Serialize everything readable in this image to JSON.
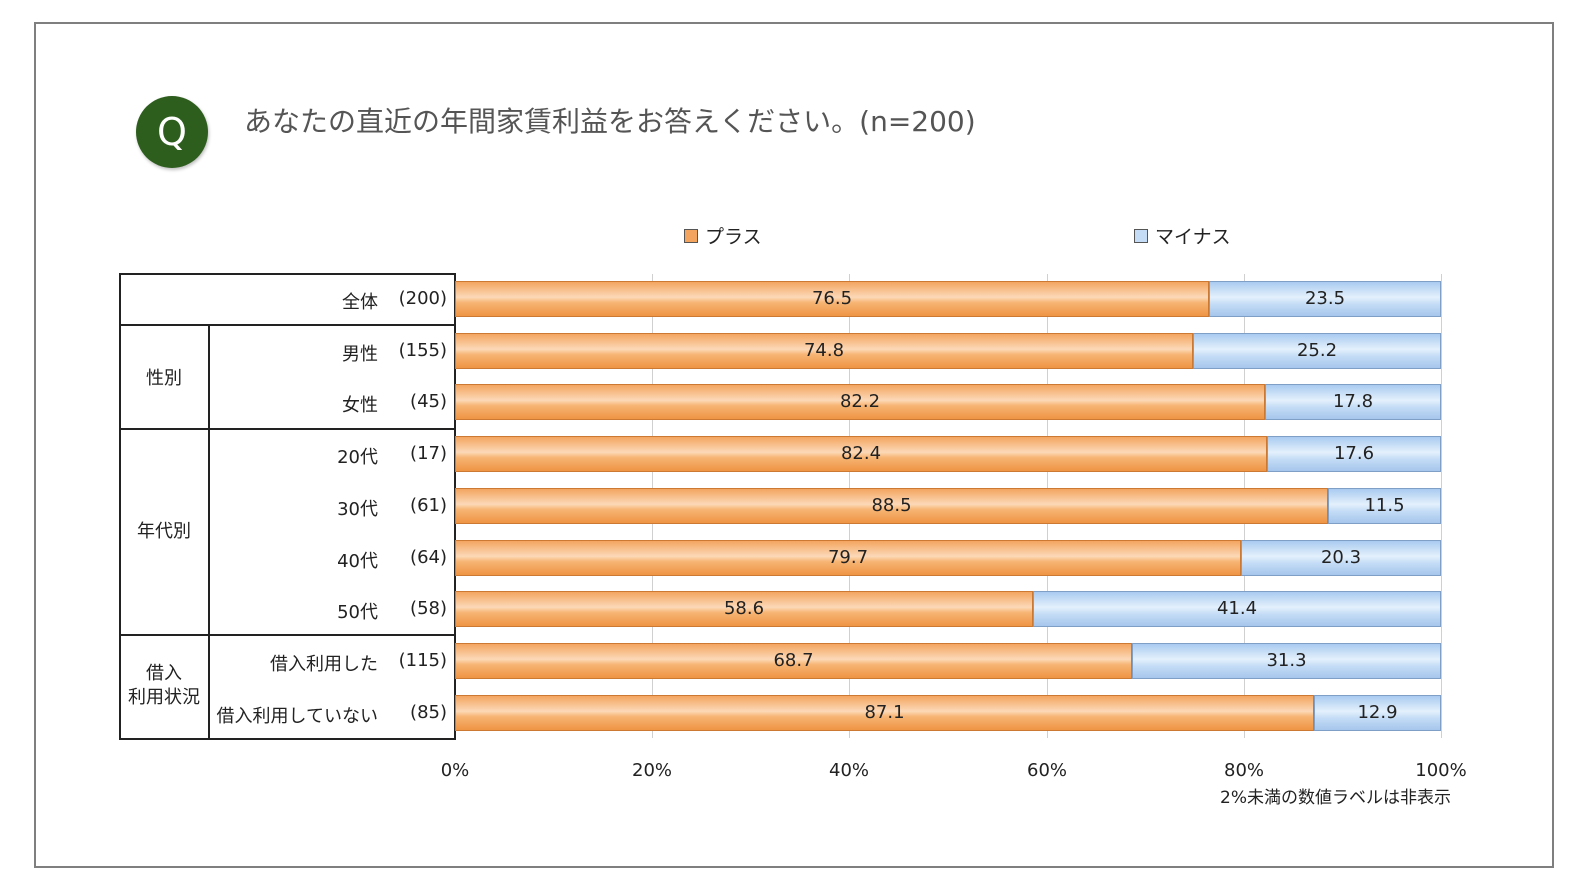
{
  "question": {
    "badge": "Q",
    "text": "あなたの直近の年間家賃利益をお答えください。(n=200)"
  },
  "legend": {
    "plus": "プラス",
    "minus": "マイナス"
  },
  "colors": {
    "plus": "#f3a55f",
    "minus": "#c4dcf6",
    "badge": "#2e5e1e"
  },
  "groups": {
    "gender": "性別",
    "age": "年代別",
    "loan_line1": "借入",
    "loan_line2": "利用状況"
  },
  "note": "2%未満の数値ラベルは非表示",
  "chart_data": {
    "type": "bar",
    "orientation": "horizontal-stacked-100",
    "categories": [
      "全体",
      "男性",
      "女性",
      "20代",
      "30代",
      "40代",
      "50代",
      "借入利用した",
      "借入利用していない"
    ],
    "n": [
      "(200)",
      "(155)",
      "(45)",
      "(17)",
      "(61)",
      "(64)",
      "(58)",
      "(115)",
      "(85)"
    ],
    "series": [
      {
        "name": "プラス",
        "values": [
          76.5,
          74.8,
          82.2,
          82.4,
          88.5,
          79.7,
          58.6,
          68.7,
          87.1
        ]
      },
      {
        "name": "マイナス",
        "values": [
          23.5,
          25.2,
          17.8,
          17.6,
          11.5,
          20.3,
          41.4,
          31.3,
          12.9
        ]
      }
    ],
    "xticks": [
      "0%",
      "20%",
      "40%",
      "60%",
      "80%",
      "100%"
    ],
    "xlim": [
      0,
      100
    ],
    "legend": "top",
    "grid": true
  }
}
